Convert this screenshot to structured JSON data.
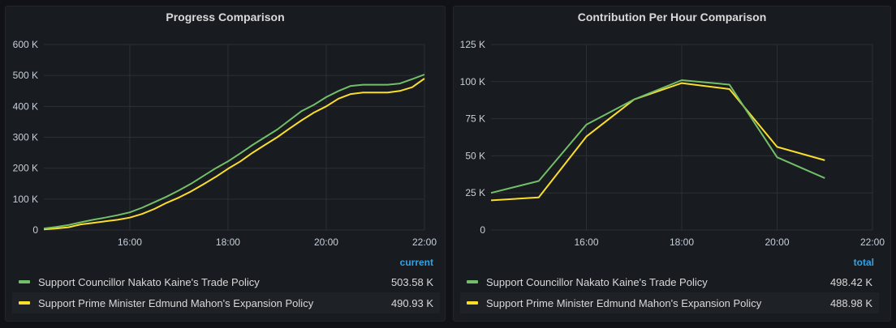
{
  "colors": {
    "series_a": "#73bf69",
    "series_b": "#fade2a",
    "background": "#181b1f",
    "grid": "#2c3035",
    "text": "#c7d0d9",
    "accent": "#33a2e5"
  },
  "panels": [
    {
      "title": "Progress Comparison",
      "legend_header": "current",
      "legend": [
        {
          "name": "Support Councillor Nakato Kaine's Trade Policy",
          "value": "503.58 K"
        },
        {
          "name": "Support Prime Minister Edmund Mahon's Expansion Policy",
          "value": "490.93 K"
        }
      ]
    },
    {
      "title": "Contribution Per Hour Comparison",
      "legend_header": "total",
      "legend": [
        {
          "name": "Support Councillor Nakato Kaine's Trade Policy",
          "value": "498.42 K"
        },
        {
          "name": "Support Prime Minister Edmund Mahon's Expansion Policy",
          "value": "488.98 K"
        }
      ]
    }
  ],
  "chart_data": [
    {
      "type": "line",
      "title": "Progress Comparison",
      "x_ticks": [
        "16:00",
        "18:00",
        "20:00",
        "22:00"
      ],
      "y_ticks": [
        "0",
        "100 K",
        "200 K",
        "300 K",
        "400 K",
        "500 K",
        "600 K"
      ],
      "xlim": [
        14.25,
        22.0
      ],
      "ylim": [
        0,
        600
      ],
      "y_unit": "K",
      "grid": true,
      "legend": "bottom",
      "series": [
        {
          "name": "Support Councillor Nakato Kaine's Trade Policy",
          "color": "#73bf69",
          "x": [
            14.25,
            14.5,
            14.75,
            15.0,
            15.25,
            15.5,
            15.75,
            16.0,
            16.25,
            16.5,
            16.75,
            17.0,
            17.25,
            17.5,
            17.75,
            18.0,
            18.25,
            18.5,
            18.75,
            19.0,
            19.25,
            19.5,
            19.75,
            20.0,
            20.25,
            20.5,
            20.75,
            21.0,
            21.25,
            21.5,
            21.75,
            22.0
          ],
          "y": [
            5,
            10,
            16,
            25,
            33,
            40,
            48,
            57,
            72,
            90,
            108,
            128,
            150,
            175,
            200,
            222,
            248,
            275,
            300,
            325,
            355,
            385,
            405,
            430,
            450,
            466,
            470,
            470,
            470,
            474,
            488,
            503
          ]
        },
        {
          "name": "Support Prime Minister Edmund Mahon's Expansion Policy",
          "color": "#fade2a",
          "x": [
            14.25,
            14.5,
            14.75,
            15.0,
            15.25,
            15.5,
            15.75,
            16.0,
            16.25,
            16.5,
            16.75,
            17.0,
            17.25,
            17.5,
            17.75,
            18.0,
            18.25,
            18.5,
            18.75,
            19.0,
            19.25,
            19.5,
            19.75,
            20.0,
            20.25,
            20.5,
            20.75,
            21.0,
            21.25,
            21.5,
            21.75,
            22.0
          ],
          "y": [
            2,
            5,
            9,
            18,
            23,
            28,
            33,
            40,
            52,
            68,
            88,
            105,
            125,
            148,
            172,
            198,
            222,
            250,
            275,
            300,
            328,
            355,
            380,
            400,
            425,
            440,
            445,
            445,
            445,
            450,
            462,
            490
          ]
        }
      ]
    },
    {
      "type": "line",
      "title": "Contribution Per Hour Comparison",
      "x_ticks": [
        "16:00",
        "18:00",
        "20:00",
        "22:00"
      ],
      "y_ticks": [
        "0",
        "25 K",
        "50 K",
        "75 K",
        "100 K",
        "125 K"
      ],
      "xlim": [
        14.0,
        22.0
      ],
      "ylim": [
        0,
        125
      ],
      "y_unit": "K",
      "grid": true,
      "legend": "bottom",
      "series": [
        {
          "name": "Support Councillor Nakato Kaine's Trade Policy",
          "color": "#73bf69",
          "x": [
            14.0,
            15.0,
            16.0,
            17.0,
            18.0,
            19.0,
            20.0,
            21.0
          ],
          "y": [
            25,
            33,
            71,
            88,
            101,
            98,
            49,
            35
          ]
        },
        {
          "name": "Support Prime Minister Edmund Mahon's Expansion Policy",
          "color": "#fade2a",
          "x": [
            14.0,
            15.0,
            16.0,
            17.0,
            18.0,
            19.0,
            20.0,
            21.0
          ],
          "y": [
            20,
            22,
            63,
            88,
            99,
            95,
            56,
            47
          ]
        }
      ]
    }
  ]
}
